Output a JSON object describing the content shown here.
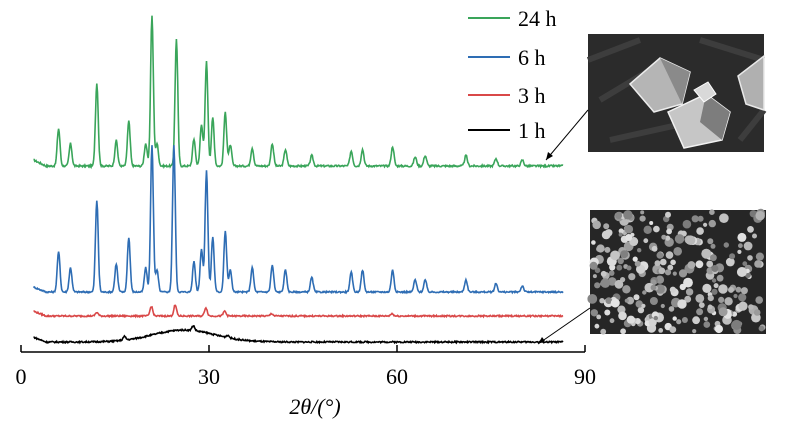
{
  "chart_data": {
    "type": "line",
    "xlabel": "2θ/(°)",
    "ylabel": "",
    "xlim": [
      0,
      90
    ],
    "xticks": [
      0,
      30,
      60,
      90
    ],
    "grid": false,
    "legend_position": "top-right",
    "series": [
      {
        "name": "24 h",
        "color": "#3aa55a",
        "baseline": 0.0,
        "peaks": [
          [
            6.0,
            0.25
          ],
          [
            7.9,
            0.15
          ],
          [
            12.1,
            0.55
          ],
          [
            15.2,
            0.17
          ],
          [
            17.2,
            0.3
          ],
          [
            19.9,
            0.15
          ],
          [
            20.9,
            1.0
          ],
          [
            21.7,
            0.15
          ],
          [
            24.8,
            0.85
          ],
          [
            27.6,
            0.18
          ],
          [
            28.8,
            0.28
          ],
          [
            29.6,
            0.7
          ],
          [
            30.6,
            0.32
          ],
          [
            32.6,
            0.36
          ],
          [
            33.4,
            0.14
          ],
          [
            36.9,
            0.12
          ],
          [
            40.1,
            0.15
          ],
          [
            42.2,
            0.11
          ],
          [
            46.4,
            0.07
          ],
          [
            52.7,
            0.1
          ],
          [
            54.5,
            0.11
          ],
          [
            59.3,
            0.13
          ],
          [
            62.9,
            0.06
          ],
          [
            64.5,
            0.07
          ],
          [
            71.0,
            0.07
          ],
          [
            75.8,
            0.05
          ],
          [
            80.0,
            0.04
          ]
        ]
      },
      {
        "name": "6 h",
        "color": "#2e6db4",
        "baseline": 0.0,
        "peaks": [
          [
            6.0,
            0.33
          ],
          [
            7.9,
            0.2
          ],
          [
            12.1,
            0.75
          ],
          [
            15.2,
            0.23
          ],
          [
            17.2,
            0.45
          ],
          [
            19.9,
            0.2
          ],
          [
            20.9,
            1.2
          ],
          [
            21.7,
            0.18
          ],
          [
            24.4,
            1.2
          ],
          [
            27.6,
            0.25
          ],
          [
            28.8,
            0.35
          ],
          [
            29.6,
            1.0
          ],
          [
            30.6,
            0.45
          ],
          [
            32.6,
            0.5
          ],
          [
            33.4,
            0.18
          ],
          [
            36.9,
            0.2
          ],
          [
            40.1,
            0.22
          ],
          [
            42.2,
            0.18
          ],
          [
            46.4,
            0.12
          ],
          [
            52.7,
            0.16
          ],
          [
            54.5,
            0.18
          ],
          [
            59.3,
            0.18
          ],
          [
            62.9,
            0.1
          ],
          [
            64.5,
            0.1
          ],
          [
            71.0,
            0.1
          ],
          [
            75.8,
            0.07
          ],
          [
            80.0,
            0.05
          ]
        ]
      },
      {
        "name": "3 h",
        "color": "#d94848",
        "baseline": 0.0,
        "peaks": [
          [
            12.1,
            0.03
          ],
          [
            20.8,
            0.08
          ],
          [
            24.6,
            0.09
          ],
          [
            29.5,
            0.07
          ],
          [
            32.5,
            0.04
          ],
          [
            40.0,
            0.02
          ],
          [
            59.2,
            0.02
          ]
        ]
      },
      {
        "name": "1 h",
        "color": "#000000",
        "baseline": 0.0,
        "hump": {
          "center": 26.0,
          "width": 7.0,
          "height": 0.1
        },
        "peaks": [
          [
            16.5,
            0.03
          ],
          [
            27.5,
            0.04
          ],
          [
            33.0,
            0.02
          ]
        ]
      }
    ]
  }
}
